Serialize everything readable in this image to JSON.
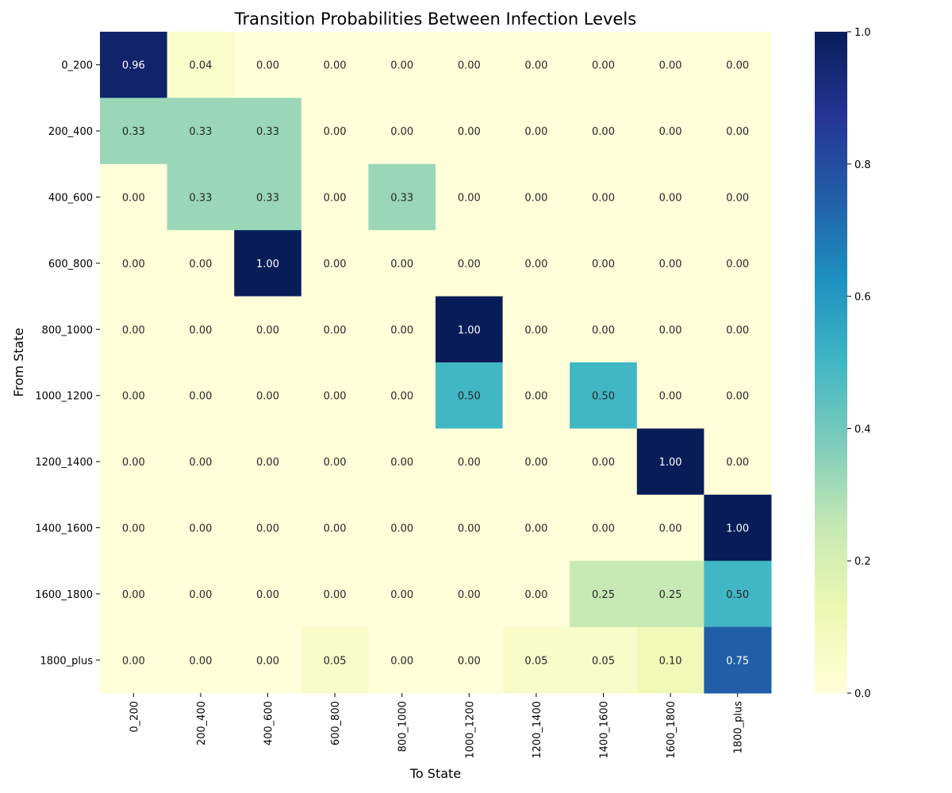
{
  "chart_data": {
    "type": "heatmap",
    "title": "Transition Probabilities Between Infection Levels",
    "xlabel": "To State",
    "ylabel": "From State",
    "x_categories": [
      "0_200",
      "200_400",
      "400_600",
      "600_800",
      "800_1000",
      "1000_1200",
      "1200_1400",
      "1400_1600",
      "1600_1800",
      "1800_plus"
    ],
    "y_categories": [
      "0_200",
      "200_400",
      "400_600",
      "600_800",
      "800_1000",
      "1000_1200",
      "1200_1400",
      "1400_1600",
      "1600_1800",
      "1800_plus"
    ],
    "values": [
      [
        0.96,
        0.04,
        0.0,
        0.0,
        0.0,
        0.0,
        0.0,
        0.0,
        0.0,
        0.0
      ],
      [
        0.33,
        0.33,
        0.33,
        0.0,
        0.0,
        0.0,
        0.0,
        0.0,
        0.0,
        0.0
      ],
      [
        0.0,
        0.33,
        0.33,
        0.0,
        0.33,
        0.0,
        0.0,
        0.0,
        0.0,
        0.0
      ],
      [
        0.0,
        0.0,
        1.0,
        0.0,
        0.0,
        0.0,
        0.0,
        0.0,
        0.0,
        0.0
      ],
      [
        0.0,
        0.0,
        0.0,
        0.0,
        0.0,
        1.0,
        0.0,
        0.0,
        0.0,
        0.0
      ],
      [
        0.0,
        0.0,
        0.0,
        0.0,
        0.0,
        0.5,
        0.0,
        0.5,
        0.0,
        0.0
      ],
      [
        0.0,
        0.0,
        0.0,
        0.0,
        0.0,
        0.0,
        0.0,
        0.0,
        1.0,
        0.0
      ],
      [
        0.0,
        0.0,
        0.0,
        0.0,
        0.0,
        0.0,
        0.0,
        0.0,
        0.0,
        1.0
      ],
      [
        0.0,
        0.0,
        0.0,
        0.0,
        0.0,
        0.0,
        0.0,
        0.25,
        0.25,
        0.5
      ],
      [
        0.0,
        0.0,
        0.0,
        0.05,
        0.0,
        0.0,
        0.05,
        0.05,
        0.1,
        0.75
      ]
    ],
    "value_format": "two-decimals",
    "colormap": "YlGnBu",
    "color_range": [
      0.0,
      1.0
    ],
    "colorbar_ticks": [
      "0.0",
      "0.2",
      "0.4",
      "0.6",
      "0.8",
      "1.0"
    ],
    "colorbar_placement": "right",
    "grid": false
  }
}
